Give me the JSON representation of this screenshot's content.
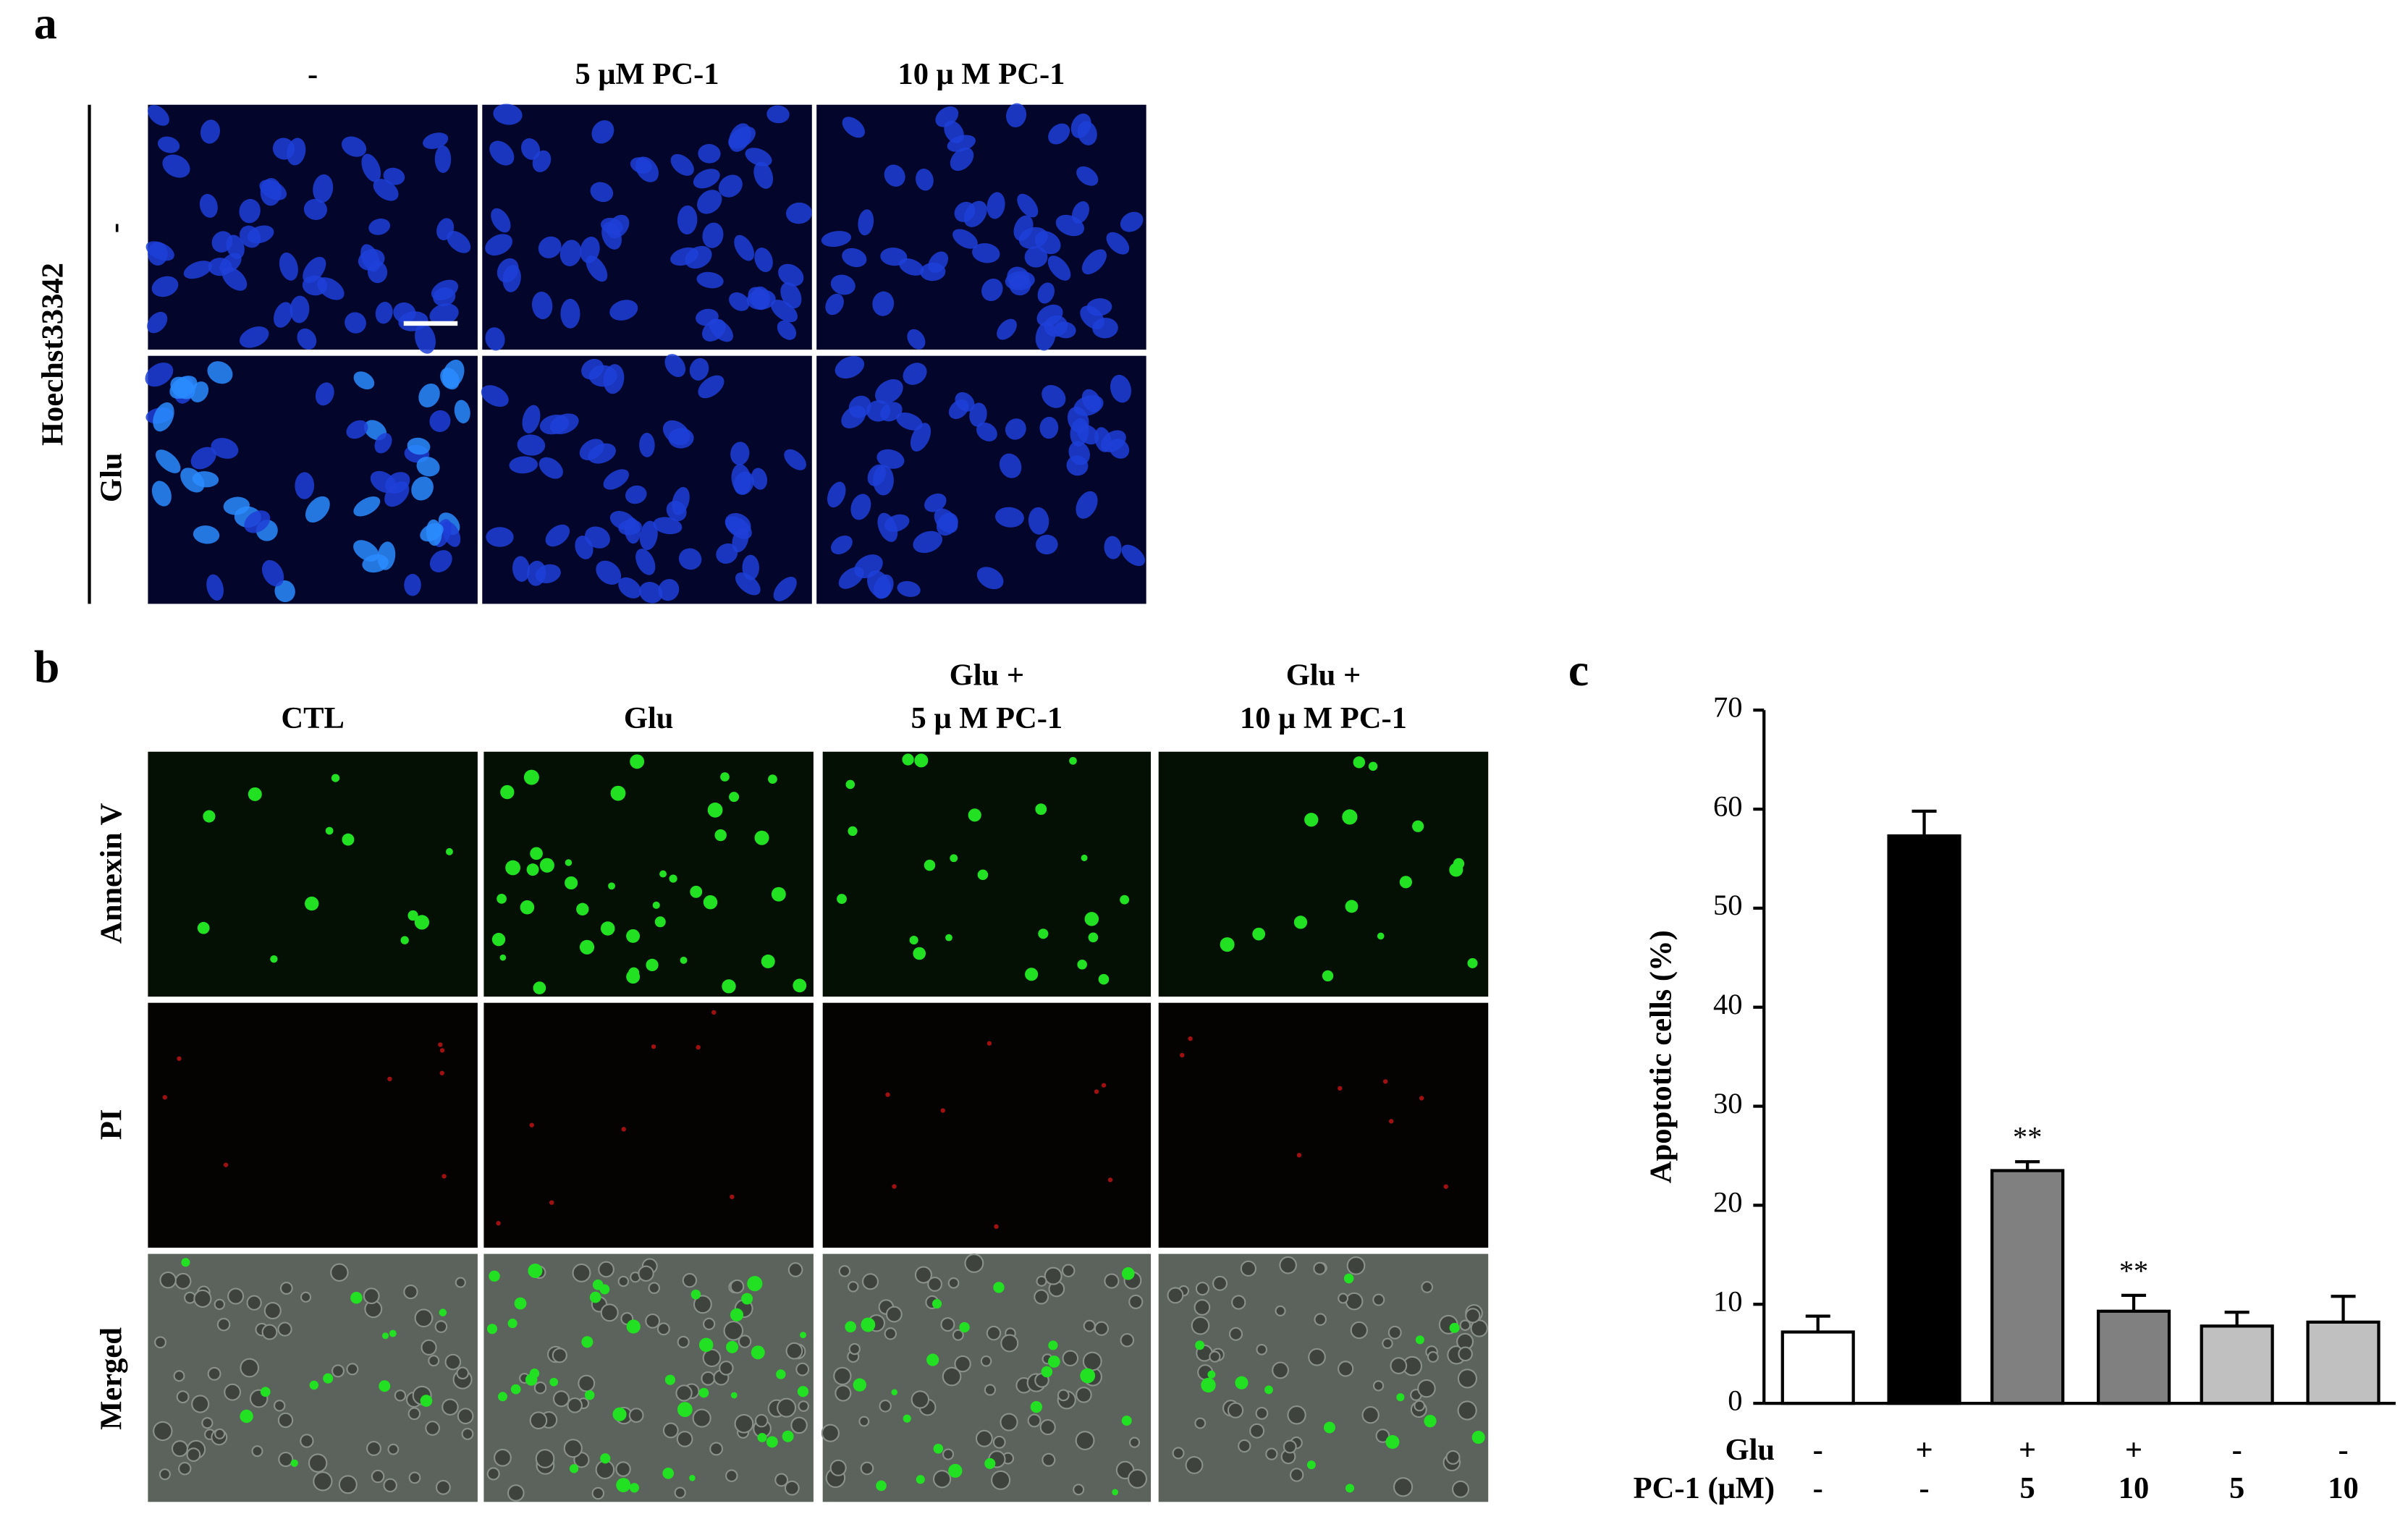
{
  "panel_a": {
    "label": "a",
    "column_headers": [
      "-",
      "5 μM PC-1",
      "10 μ M PC-1"
    ],
    "stain": "Hoechst33342",
    "row_labels": [
      "-",
      "Glu"
    ]
  },
  "panel_b": {
    "label": "b",
    "column_headers": [
      [
        "CTL"
      ],
      [
        "Glu"
      ],
      [
        "Glu +",
        "5 μ M PC-1"
      ],
      [
        "Glu +",
        "10 μ M PC-1"
      ]
    ],
    "row_labels": [
      "Annexin V",
      "PI",
      "Merged"
    ]
  },
  "chart_data": {
    "type": "bar",
    "panel_label": "c",
    "ylabel": "Apoptotic cells (%)",
    "categories": [
      null,
      null,
      null,
      null,
      null,
      null
    ],
    "values": [
      7.2,
      57.3,
      23.5,
      9.3,
      7.8,
      8.2
    ],
    "errors": [
      1.6,
      2.5,
      0.9,
      1.6,
      1.4,
      2.6
    ],
    "colors": [
      "#ffffff",
      "#000000",
      "#808080",
      "#808080",
      "#c0c0c0",
      "#c0c0c0"
    ],
    "value_annotations": [
      null,
      null,
      "**",
      "**",
      null,
      null
    ],
    "condition_rows": [
      {
        "name": "Glu",
        "levels": [
          "-",
          "+",
          "+",
          "+",
          "-",
          "-"
        ]
      },
      {
        "name": "PC-1 (μM)",
        "levels": [
          "-",
          "-",
          "5",
          "10",
          "5",
          "10"
        ]
      }
    ],
    "ylim": [
      0,
      70
    ],
    "yticks": [
      0,
      10,
      20,
      30,
      40,
      50,
      60,
      70
    ]
  }
}
